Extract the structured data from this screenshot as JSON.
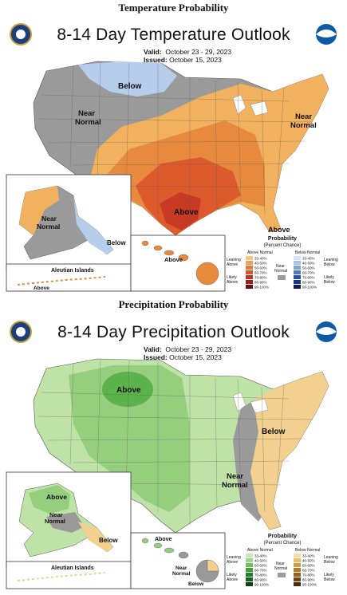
{
  "temp": {
    "section_title": "Temperature Probability",
    "map_title": "8-14 Day Temperature Outlook",
    "valid_label": "Valid:",
    "valid_value": "October 23 - 29, 2023",
    "issued_label": "Issued:",
    "issued_value": "October 15, 2023",
    "regions": {
      "below": "Below",
      "near_normal": "Near Normal",
      "near_normal_ne": "Near Normal",
      "above_center": "Above",
      "above_se": "Above",
      "alaska_near_normal": "Near Normal",
      "alaska_below": "Below",
      "hawaii_above": "Above",
      "aleutian_title": "Aleutian Islands",
      "aleutian_above": "Above"
    },
    "legend": {
      "title": "Probability",
      "subtitle": "(Percent Chance)",
      "above_header": "Above Normal",
      "below_header": "Below Normal",
      "near_normal": "Near Normal",
      "leaning_above": "Leaning Above",
      "likely_above": "Likely Above",
      "leaning_below": "Leaning Below",
      "likely_below": "Likely Below",
      "ranges": [
        "33-40%",
        "40-50%",
        "50-60%",
        "60-70%",
        "70-80%",
        "80-90%",
        "90-100%"
      ],
      "above_colors": [
        "#f6c97b",
        "#efa05a",
        "#e67a3a",
        "#d9542a",
        "#c23522",
        "#9c1f1b",
        "#6b0f10"
      ],
      "below_colors": [
        "#d8e4f5",
        "#a9c4e8",
        "#7ea4d7",
        "#4d7cc2",
        "#2b52a5",
        "#1a3585",
        "#0e1d5a"
      ]
    }
  },
  "precip": {
    "section_title": "Precipitation Probability",
    "map_title": "8-14 Day Precipitation Outlook",
    "valid_label": "Valid:",
    "valid_value": "October 23 - 29, 2023",
    "issued_label": "Issued:",
    "issued_value": "October 15, 2023",
    "regions": {
      "above_center": "Above",
      "below_east": "Below",
      "near_normal": "Near Normal",
      "alaska_above": "Above",
      "alaska_near_normal": "Near Normal",
      "alaska_below": "Below",
      "hawaii_above": "Above",
      "hawaii_near_normal": "Near Normal",
      "hawaii_below": "Below",
      "aleutian_title": "Aleutian Islands"
    },
    "legend": {
      "title": "Probability",
      "subtitle": "(Percent Chance)",
      "above_header": "Above Normal",
      "below_header": "Below Normal",
      "near_normal": "Near Normal",
      "leaning_above": "Leaning Above",
      "likely_above": "Likely Above",
      "leaning_below": "Leaning Below",
      "likely_below": "Likely Below",
      "ranges": [
        "33-40%",
        "40-50%",
        "50-60%",
        "60-70%",
        "70-80%",
        "80-90%",
        "90-100%"
      ],
      "above_colors": [
        "#c9e6b4",
        "#9ed48a",
        "#6fbf5f",
        "#3f9f3c",
        "#217f2a",
        "#12611d",
        "#0a4212"
      ],
      "below_colors": [
        "#f5dca4",
        "#e9bd6d",
        "#d39b45",
        "#b67a2d",
        "#955c1e",
        "#734213",
        "#4e2a0a"
      ]
    }
  },
  "colors": {
    "near_normal": "#9a9a9a",
    "temp_above_1": "#f2b15e",
    "temp_above_2": "#e88a3e",
    "temp_above_3": "#dc5a2c",
    "temp_above_4": "#c83a24",
    "temp_below_1": "#b7cdec",
    "precip_above_1": "#bfe3a7",
    "precip_above_2": "#95cf7e",
    "precip_above_3": "#5cb24b",
    "precip_below_1": "#f2d08f"
  }
}
